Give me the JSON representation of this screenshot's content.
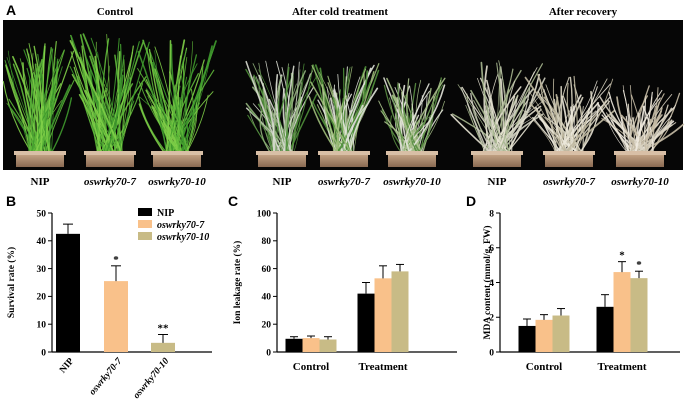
{
  "panel_a": {
    "letter": "A",
    "headers": [
      "Control",
      "After cold treatment",
      "After recovery"
    ],
    "plant_labels": [
      [
        "NIP",
        "oswrky70-7",
        "oswrky70-10"
      ],
      [
        "NIP",
        "oswrky70-7",
        "oswrky70-10"
      ],
      [
        "NIP",
        "oswrky70-7",
        "oswrky70-10"
      ]
    ],
    "photo_description": "rice seedlings in pots on black background"
  },
  "colors": {
    "NIP": "#000000",
    "oswrky70-7": "#f9c18a",
    "oswrky70-10": "#c8bb86"
  },
  "chart_data": [
    {
      "panel": "B",
      "type": "bar",
      "ylabel": "Survival rate (%)",
      "ylim": [
        0,
        50
      ],
      "yticks": [
        0,
        10,
        20,
        30,
        40,
        50
      ],
      "categories": [
        "NIP",
        "oswrky70-7",
        "oswrky70-10"
      ],
      "values": [
        42.5,
        25.5,
        3.3
      ],
      "errors": [
        3.5,
        5.5,
        3.0
      ],
      "significance": [
        "",
        "*",
        "**"
      ],
      "legend": [
        "NIP",
        "oswrky70-7",
        "oswrky70-10"
      ],
      "legend_position": "top-right"
    },
    {
      "panel": "C",
      "type": "bar",
      "ylabel": "Ion leakage rate (%)",
      "ylim": [
        0,
        100
      ],
      "yticks": [
        0,
        20,
        40,
        60,
        80,
        100
      ],
      "categories": [
        "Control",
        "Treatment"
      ],
      "series": [
        {
          "name": "NIP",
          "values": [
            9.5,
            42
          ],
          "errors": [
            1.5,
            8
          ]
        },
        {
          "name": "oswrky70-7",
          "values": [
            10,
            53
          ],
          "errors": [
            1.5,
            9
          ]
        },
        {
          "name": "oswrky70-10",
          "values": [
            9,
            58
          ],
          "errors": [
            2,
            5
          ]
        }
      ]
    },
    {
      "panel": "D",
      "type": "bar",
      "ylabel": "MDA content (mmol/g, FW)",
      "ylim": [
        0,
        8
      ],
      "yticks": [
        0,
        2,
        4,
        6,
        8
      ],
      "categories": [
        "Control",
        "Treatment"
      ],
      "series": [
        {
          "name": "NIP",
          "values": [
            1.5,
            2.6
          ],
          "errors": [
            0.4,
            0.7
          ],
          "significance": [
            "",
            ""
          ]
        },
        {
          "name": "oswrky70-7",
          "values": [
            1.85,
            4.6
          ],
          "errors": [
            0.3,
            0.6
          ],
          "significance": [
            "",
            "*"
          ]
        },
        {
          "name": "oswrky70-10",
          "values": [
            2.1,
            4.25
          ],
          "errors": [
            0.4,
            0.4
          ],
          "significance": [
            "",
            "*"
          ]
        }
      ]
    }
  ]
}
